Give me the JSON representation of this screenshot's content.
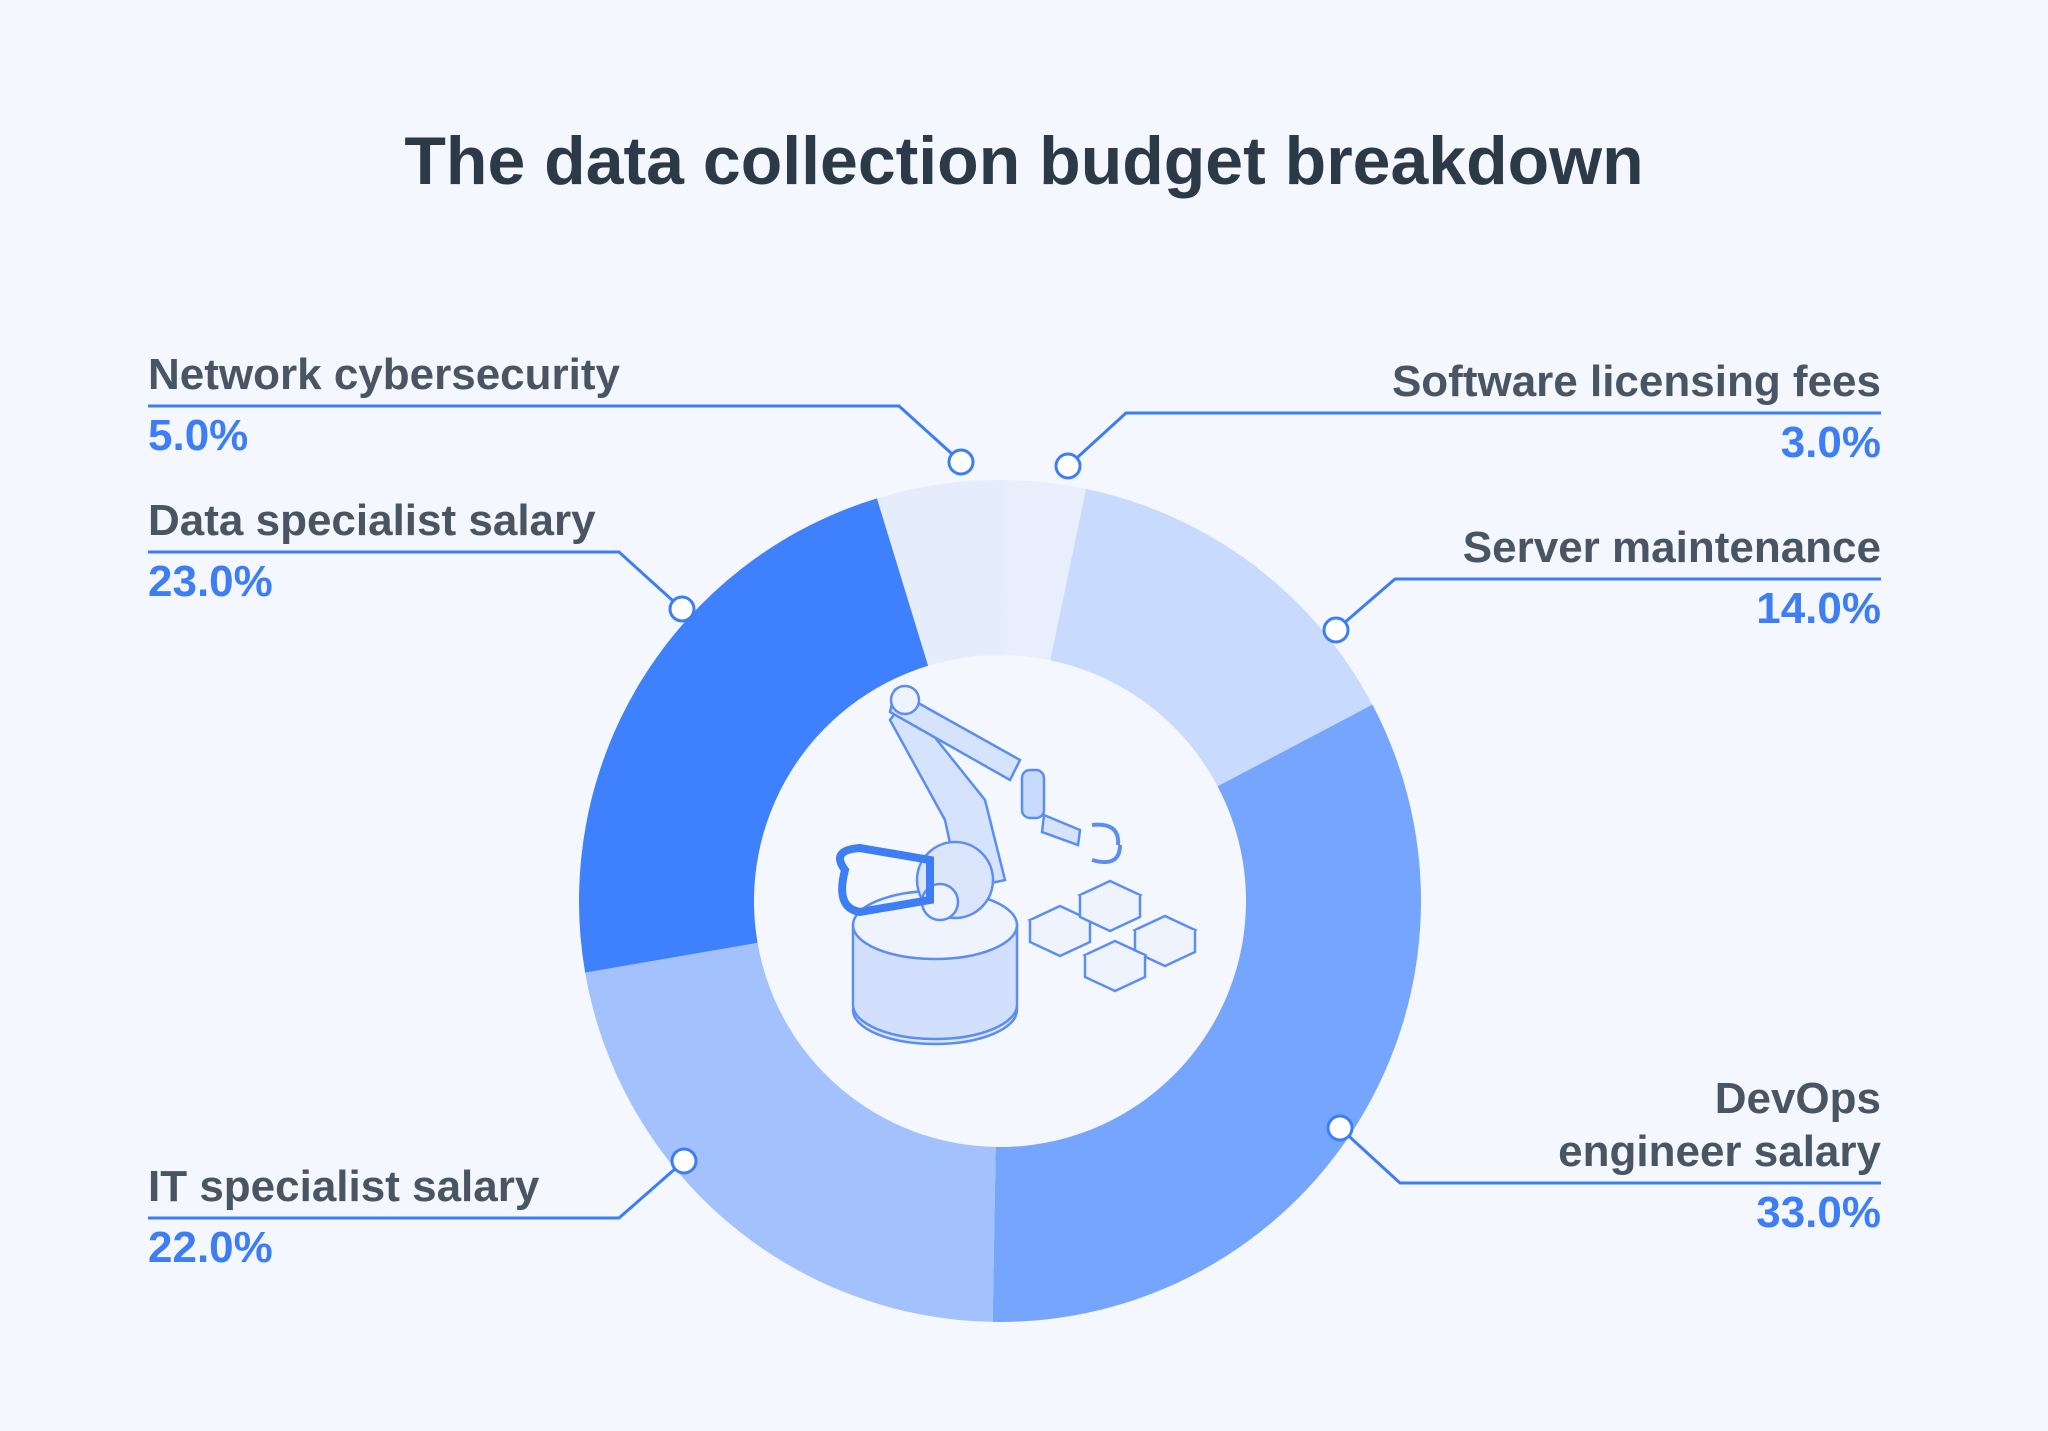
{
  "chart_data": {
    "type": "donut",
    "title": "The data collection budget breakdown",
    "categories": [
      "Network cybersecurity",
      "Software licensing fees",
      "Server maintenance",
      "DevOps engineer salary",
      "IT specialist salary",
      "Data specialist salary"
    ],
    "values": [
      5.0,
      3.0,
      14.0,
      33.0,
      22.0,
      23.0
    ],
    "value_labels": [
      "5.0%",
      "3.0%",
      "14.0%",
      "33.0%",
      "22.0%",
      "23.0%"
    ],
    "colors": [
      "#e5ecfc",
      "#e8eefc",
      "#c8dafd",
      "#76a5fd",
      "#a3c2fd",
      "#3f80fc"
    ]
  }
}
